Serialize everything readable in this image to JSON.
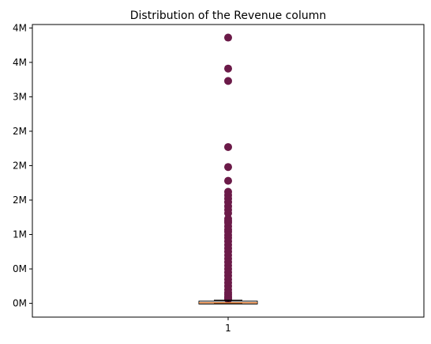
{
  "chart_data": {
    "type": "boxplot",
    "title": "Distribution of the Revenue column",
    "xlabel": "",
    "ylabel": "",
    "categories": [
      "1"
    ],
    "y_range": [
      -200000,
      4050000
    ],
    "y_ticks": [
      {
        "value": 0,
        "label": "0M"
      },
      {
        "value": 500000,
        "label": "0M"
      },
      {
        "value": 1000000,
        "label": "1M"
      },
      {
        "value": 1500000,
        "label": "2M"
      },
      {
        "value": 2000000,
        "label": "2M"
      },
      {
        "value": 2500000,
        "label": "2M"
      },
      {
        "value": 3000000,
        "label": "3M"
      },
      {
        "value": 3500000,
        "label": "4M"
      },
      {
        "value": 4000000,
        "label": "4M"
      }
    ],
    "box": {
      "min": 0,
      "q1": 2000,
      "median": 8000,
      "q3": 20000,
      "max": 47000
    },
    "outliers": [
      3860000,
      3410000,
      3230000,
      2270000,
      1980000,
      1780000,
      1620000,
      1570000,
      1520000,
      1470000,
      1410000,
      1360000,
      1310000,
      1230000,
      1200000,
      1170000,
      1120000,
      1070000,
      1040000,
      990000,
      950000,
      900000,
      850000,
      800000,
      750000,
      700000,
      650000,
      600000,
      550000,
      500000,
      450000,
      400000,
      350000,
      300000,
      250000,
      200000,
      160000,
      130000,
      100000,
      80000,
      60000
    ],
    "colors": {
      "outlier": "#6b1a48",
      "median": "#e8823a",
      "box": "#000000"
    },
    "grid": false
  }
}
